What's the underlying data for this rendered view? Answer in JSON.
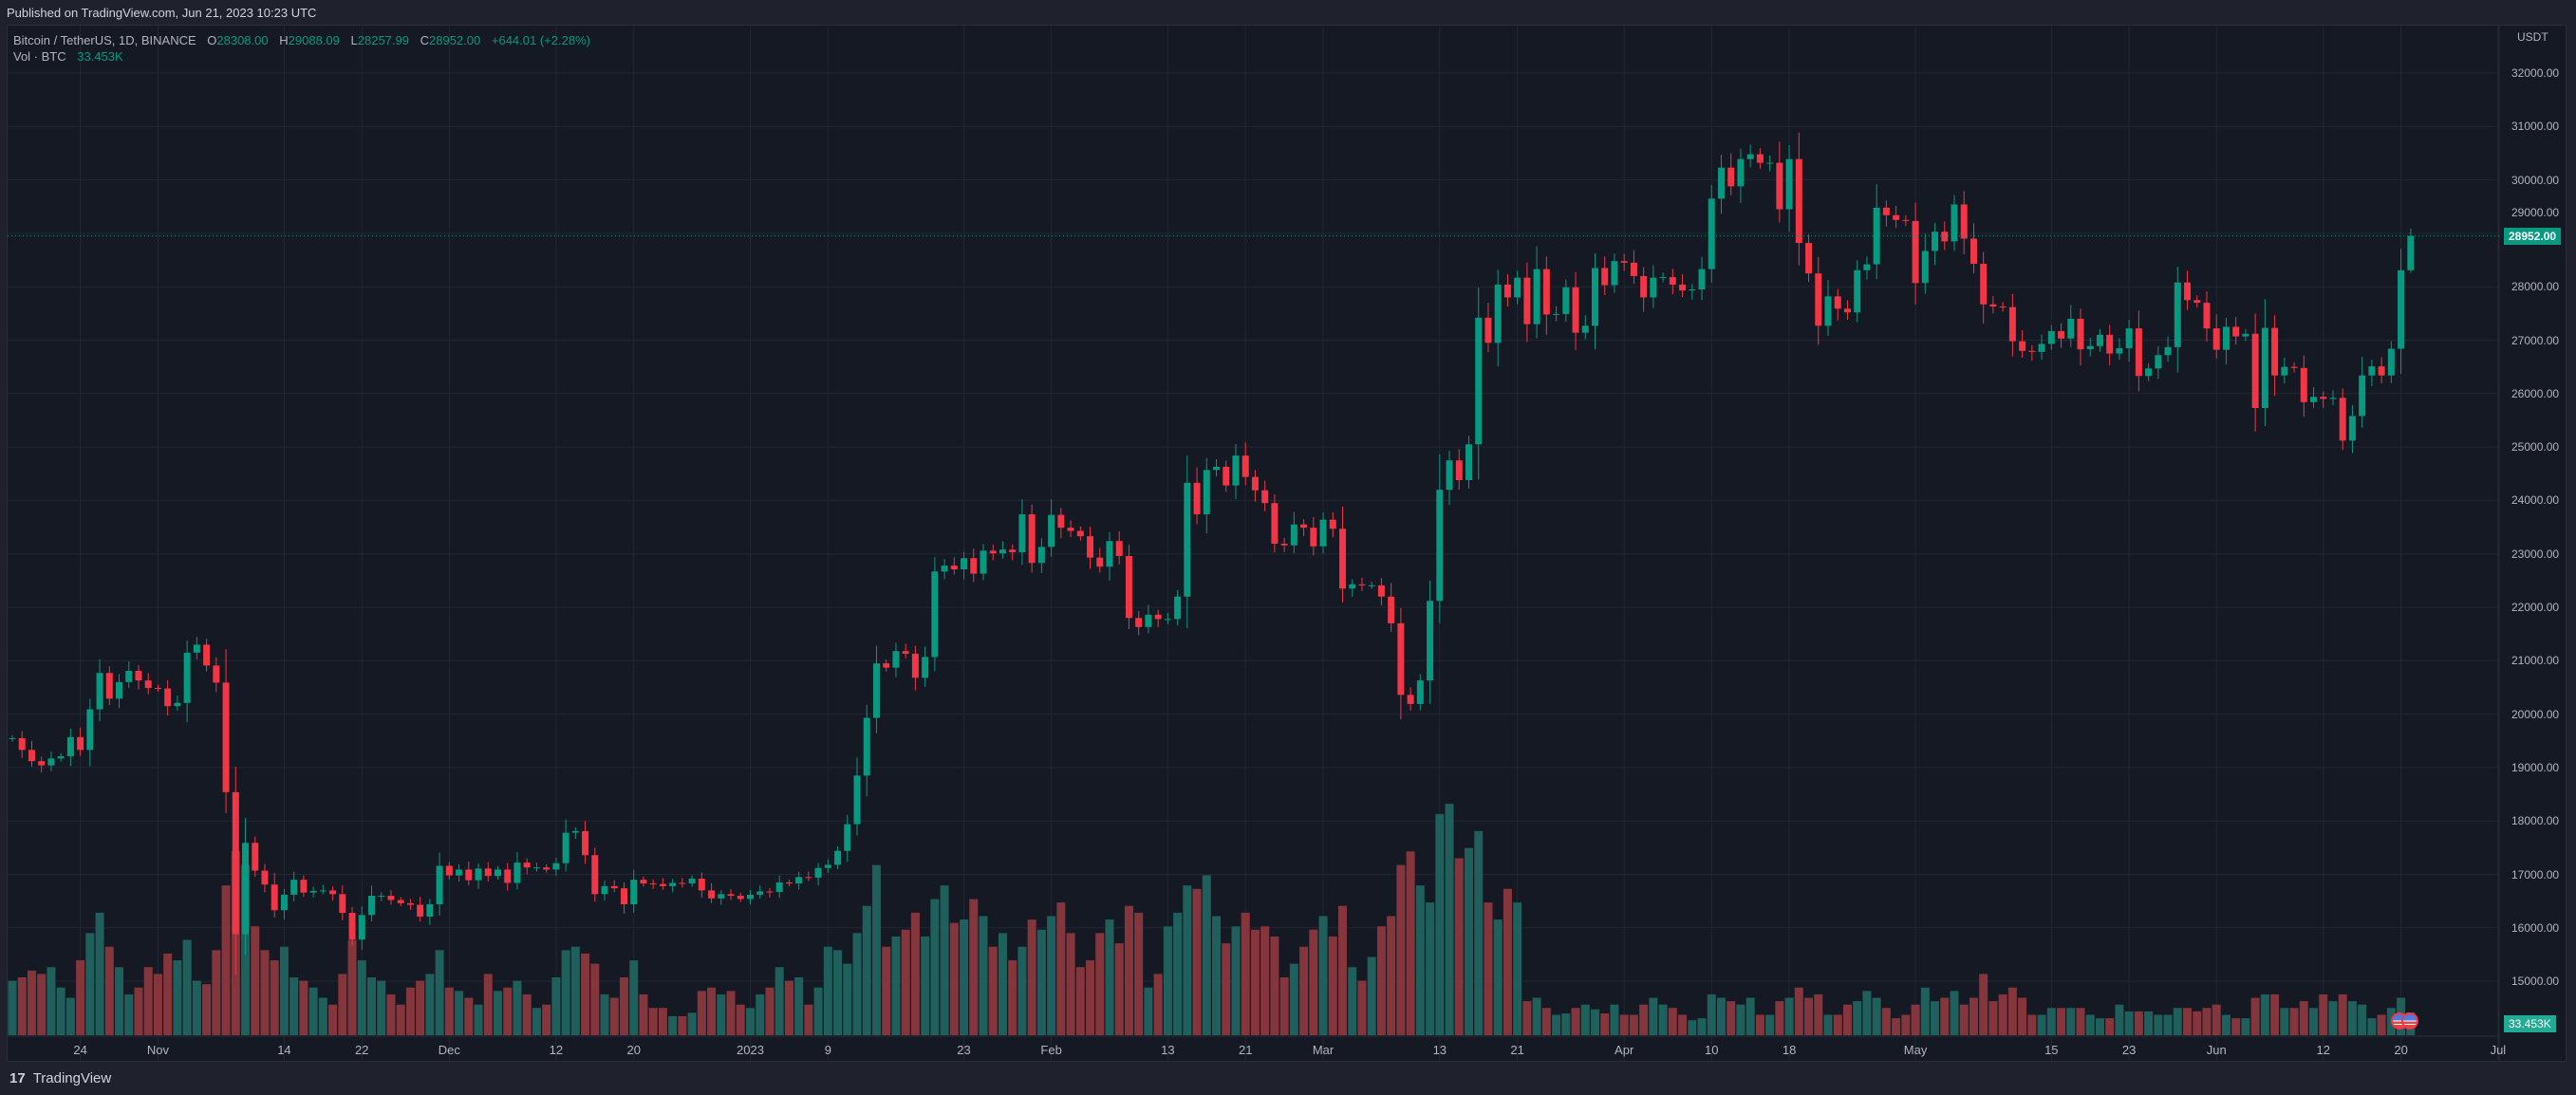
{
  "published": "Published on TradingView.com, Jun 21, 2023 10:23 UTC",
  "legend": {
    "symbol": "Bitcoin / TetherUS, 1D, BINANCE",
    "o_label": "O",
    "o": "28308.00",
    "h_label": "H",
    "h": "29088.09",
    "l_label": "L",
    "l": "28257.99",
    "c_label": "C",
    "c": "28952.00",
    "change": "+644.01 (+2.28%)",
    "vol_label": "Vol · BTC",
    "vol": "33.453K"
  },
  "price_axis": {
    "currency": "USDT",
    "ticks": [
      "32000.00",
      "31000.00",
      "30000.00",
      "29000.00",
      "28000.00",
      "27000.00",
      "26000.00",
      "25000.00",
      "24000.00",
      "23000.00",
      "22000.00",
      "21000.00",
      "20000.00",
      "19000.00",
      "18000.00",
      "17000.00",
      "16000.00",
      "15000.00"
    ],
    "last_price": "28952.00",
    "last_volume": "33.453K"
  },
  "colors": {
    "up": "#089981",
    "down": "#f23645",
    "vol_up": "#1f5f5c",
    "vol_down": "#84363c"
  },
  "footer": {
    "brand": "TradingView",
    "logo": "17"
  },
  "chart_data": {
    "type": "candlestick",
    "symbol": "BTCUSDT",
    "interval": "1D",
    "start_date": "2022-10-17",
    "ylim": [
      14000,
      32500
    ],
    "x_ticks": [
      {
        "label": "24",
        "day": 7
      },
      {
        "label": "Nov",
        "day": 15
      },
      {
        "label": "14",
        "day": 28
      },
      {
        "label": "22",
        "day": 36
      },
      {
        "label": "Dec",
        "day": 45
      },
      {
        "label": "12",
        "day": 56
      },
      {
        "label": "20",
        "day": 64
      },
      {
        "label": "2023",
        "day": 76
      },
      {
        "label": "9",
        "day": 84
      },
      {
        "label": "23",
        "day": 98
      },
      {
        "label": "Feb",
        "day": 107
      },
      {
        "label": "13",
        "day": 119
      },
      {
        "label": "21",
        "day": 127
      },
      {
        "label": "Mar",
        "day": 135
      },
      {
        "label": "13",
        "day": 147
      },
      {
        "label": "21",
        "day": 155
      },
      {
        "label": "Apr",
        "day": 166
      },
      {
        "label": "10",
        "day": 175
      },
      {
        "label": "18",
        "day": 183
      },
      {
        "label": "May",
        "day": 196
      },
      {
        "label": "15",
        "day": 210
      },
      {
        "label": "23",
        "day": 218
      },
      {
        "label": "Jun",
        "day": 227
      },
      {
        "label": "12",
        "day": 238
      },
      {
        "label": "20",
        "day": 246
      },
      {
        "label": "Jul",
        "day": 256
      }
    ],
    "first_open": 19540,
    "closes": [
      19550,
      19330,
      19120,
      19040,
      19170,
      19210,
      19570,
      19330,
      20090,
      20770,
      20290,
      20600,
      20810,
      20630,
      20490,
      20480,
      20150,
      20210,
      21150,
      21300,
      20910,
      20590,
      18540,
      15880,
      17590,
      17070,
      16810,
      16330,
      16620,
      16900,
      16660,
      16690,
      16700,
      16630,
      16280,
      15780,
      16240,
      16600,
      16600,
      16520,
      16460,
      16430,
      16210,
      16440,
      17160,
      16980,
      17090,
      16890,
      17110,
      16970,
      17090,
      16840,
      17220,
      17130,
      17130,
      17090,
      17210,
      17780,
      17810,
      17360,
      16630,
      16780,
      16740,
      16440,
      16900,
      16830,
      16820,
      16780,
      16840,
      16830,
      16920,
      16700,
      16550,
      16630,
      16600,
      16540,
      16620,
      16680,
      16670,
      16850,
      16830,
      16950,
      16940,
      17120,
      17180,
      17440,
      17940,
      18850,
      19930,
      20950,
      20870,
      21180,
      21130,
      20680,
      21070,
      22670,
      22780,
      22710,
      22920,
      22630,
      23060,
      23010,
      23080,
      23030,
      23740,
      22830,
      23130,
      23730,
      23490,
      23430,
      23330,
      22930,
      22760,
      23240,
      22960,
      21800,
      21630,
      21860,
      21780,
      21780,
      22200,
      24330,
      23740,
      24570,
      24630,
      24280,
      24840,
      24440,
      24190,
      23950,
      23190,
      23160,
      23550,
      23490,
      23140,
      23640,
      23470,
      22350,
      22430,
      22410,
      22410,
      22200,
      21700,
      20360,
      20190,
      20630,
      22120,
      24200,
      24750,
      24380,
      25050,
      27420,
      26950,
      28040,
      27800,
      28170,
      27300,
      28330,
      27480,
      27490,
      27990,
      27140,
      27270,
      28350,
      28030,
      28480,
      28450,
      28200,
      27800,
      28170,
      28180,
      28040,
      27930,
      27950,
      28330,
      29650,
      30230,
      29880,
      30390,
      30480,
      30320,
      30320,
      29450,
      30390,
      28820,
      28250,
      27270,
      27820,
      27590,
      27520,
      28310,
      28420,
      29480,
      29340,
      29250,
      29230,
      28070,
      28670,
      29030,
      28850,
      29540,
      28900,
      28430,
      27670,
      27630,
      27620,
      26980,
      26800,
      26780,
      26930,
      27170,
      27030,
      27400,
      26830,
      26890,
      27100,
      26750,
      26850,
      27220,
      26330,
      26470,
      26720,
      26870,
      28080,
      27750,
      27700,
      27220,
      26820,
      27250,
      27070,
      27120,
      25730,
      27230,
      26340,
      26500,
      26480,
      25840,
      25940,
      25900,
      25920,
      25120,
      25580,
      26340,
      26510,
      26340,
      26840,
      28308,
      28952
    ],
    "last_candle": {
      "open": 28308.0,
      "high": 29088.09,
      "low": 28257.99,
      "close": 28952.0
    },
    "volume_unit": "K BTC",
    "volumes": [
      80,
      85,
      95,
      90,
      100,
      70,
      55,
      110,
      150,
      180,
      130,
      100,
      60,
      70,
      100,
      90,
      120,
      110,
      140,
      80,
      75,
      125,
      220,
      270,
      250,
      160,
      125,
      110,
      130,
      85,
      80,
      70,
      55,
      45,
      90,
      140,
      110,
      85,
      80,
      60,
      45,
      70,
      80,
      90,
      125,
      70,
      65,
      55,
      45,
      90,
      65,
      70,
      80,
      60,
      40,
      45,
      85,
      125,
      130,
      120,
      105,
      60,
      55,
      85,
      110,
      60,
      40,
      40,
      28,
      28,
      33,
      65,
      70,
      60,
      65,
      45,
      40,
      60,
      70,
      100,
      80,
      85,
      45,
      70,
      130,
      125,
      105,
      150,
      190,
      250,
      130,
      145,
      155,
      180,
      145,
      200,
      220,
      165,
      170,
      200,
      175,
      130,
      150,
      110,
      130,
      170,
      155,
      175,
      195,
      150,
      100,
      110,
      150,
      170,
      135,
      190,
      180,
      70,
      90,
      160,
      180,
      220,
      215,
      235,
      175,
      135,
      160,
      180,
      155,
      160,
      145,
      85,
      105,
      130,
      155,
      175,
      145,
      190,
      100,
      80,
      115,
      160,
      175,
      250,
      270,
      220,
      195,
      325,
      340,
      260,
      275,
      300,
      195,
      170,
      215,
      195,
      50,
      55,
      40,
      30,
      32,
      40,
      45,
      38,
      32,
      45,
      30,
      30,
      45,
      55,
      45,
      40,
      30,
      22,
      25,
      60,
      55,
      50,
      45,
      55,
      30,
      30,
      50,
      55,
      70,
      55,
      60,
      30,
      30,
      45,
      50,
      65,
      55,
      40,
      25,
      30,
      45,
      70,
      50,
      55,
      65,
      45,
      55,
      90,
      50,
      60,
      70,
      55,
      30,
      30,
      40,
      40,
      40,
      40,
      30,
      25,
      25,
      45,
      35,
      35,
      35,
      30,
      30,
      40,
      40,
      35,
      40,
      45,
      30,
      25,
      25,
      55,
      60,
      60,
      40,
      40,
      50,
      40,
      60,
      50,
      60,
      50,
      45,
      25,
      30,
      40,
      55,
      33.453
    ]
  }
}
